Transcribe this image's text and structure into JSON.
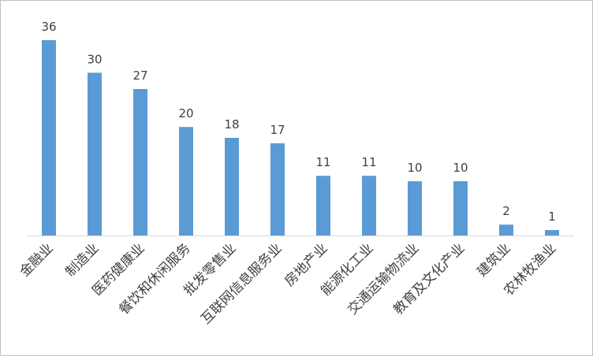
{
  "chart_data": {
    "type": "bar",
    "categories": [
      "金融业",
      "制造业",
      "医药健康业",
      "餐饮和休闲服务",
      "批发零售业",
      "互联网信息服务业",
      "房地产业",
      "能源化工业",
      "交通运输物流业",
      "教育及文化产业",
      "建筑业",
      "农林牧渔业"
    ],
    "values": [
      36,
      30,
      27,
      20,
      18,
      17,
      11,
      11,
      10,
      10,
      2,
      1
    ],
    "color": "#5b9bd5"
  }
}
